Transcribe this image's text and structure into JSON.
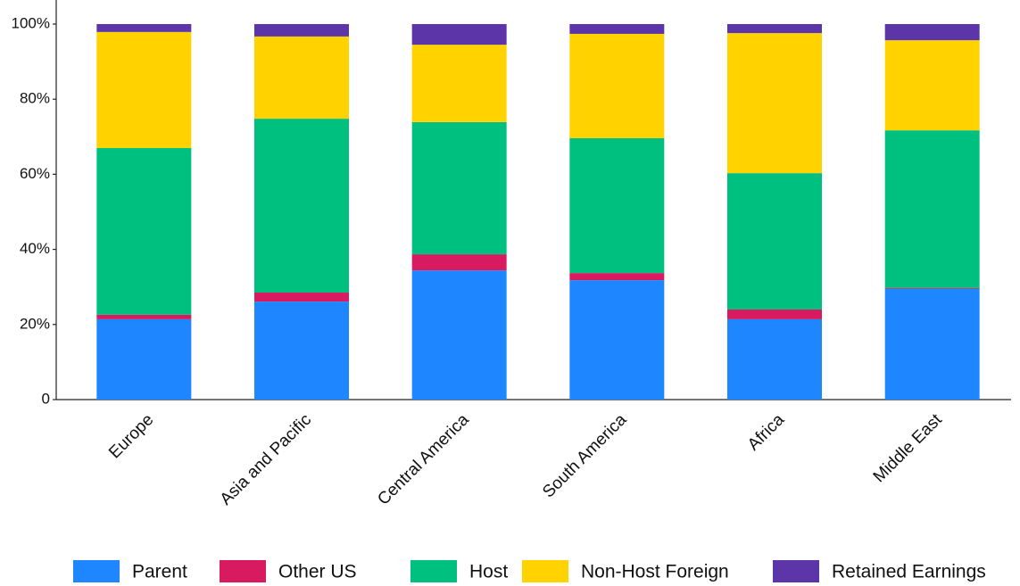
{
  "chart_data": {
    "type": "bar",
    "stacked": true,
    "categories": [
      "Europe",
      "Asia and Pacific",
      "Central America",
      "South America",
      "Africa",
      "Middle East"
    ],
    "series": [
      {
        "name": "Parent",
        "color": "#1e87ff",
        "values": [
          21.4,
          26.1,
          34.4,
          31.8,
          21.4,
          29.5
        ]
      },
      {
        "name": "Other US",
        "color": "#d81b60",
        "values": [
          1.2,
          2.4,
          4.3,
          1.9,
          2.6,
          0.2
        ]
      },
      {
        "name": "Host",
        "color": "#00c080",
        "values": [
          44.4,
          46.3,
          35.2,
          35.9,
          36.3,
          42.0
        ]
      },
      {
        "name": "Non-Host Foreign",
        "color": "#ffd200",
        "values": [
          30.9,
          21.9,
          20.6,
          27.8,
          37.3,
          24.0
        ]
      },
      {
        "name": "Retained Earnings",
        "color": "#5c35a8",
        "values": [
          2.1,
          3.3,
          5.5,
          2.6,
          2.4,
          4.3
        ]
      }
    ],
    "ylim": [
      0,
      100
    ],
    "yticks": [
      0,
      {
        "value": 20,
        "label": "20%"
      },
      {
        "value": 40,
        "label": "40%"
      },
      {
        "value": 60,
        "label": "60%"
      },
      {
        "value": 80,
        "label": "80%"
      },
      {
        "value": 100,
        "label": "100%"
      }
    ],
    "legend": "bottom"
  }
}
